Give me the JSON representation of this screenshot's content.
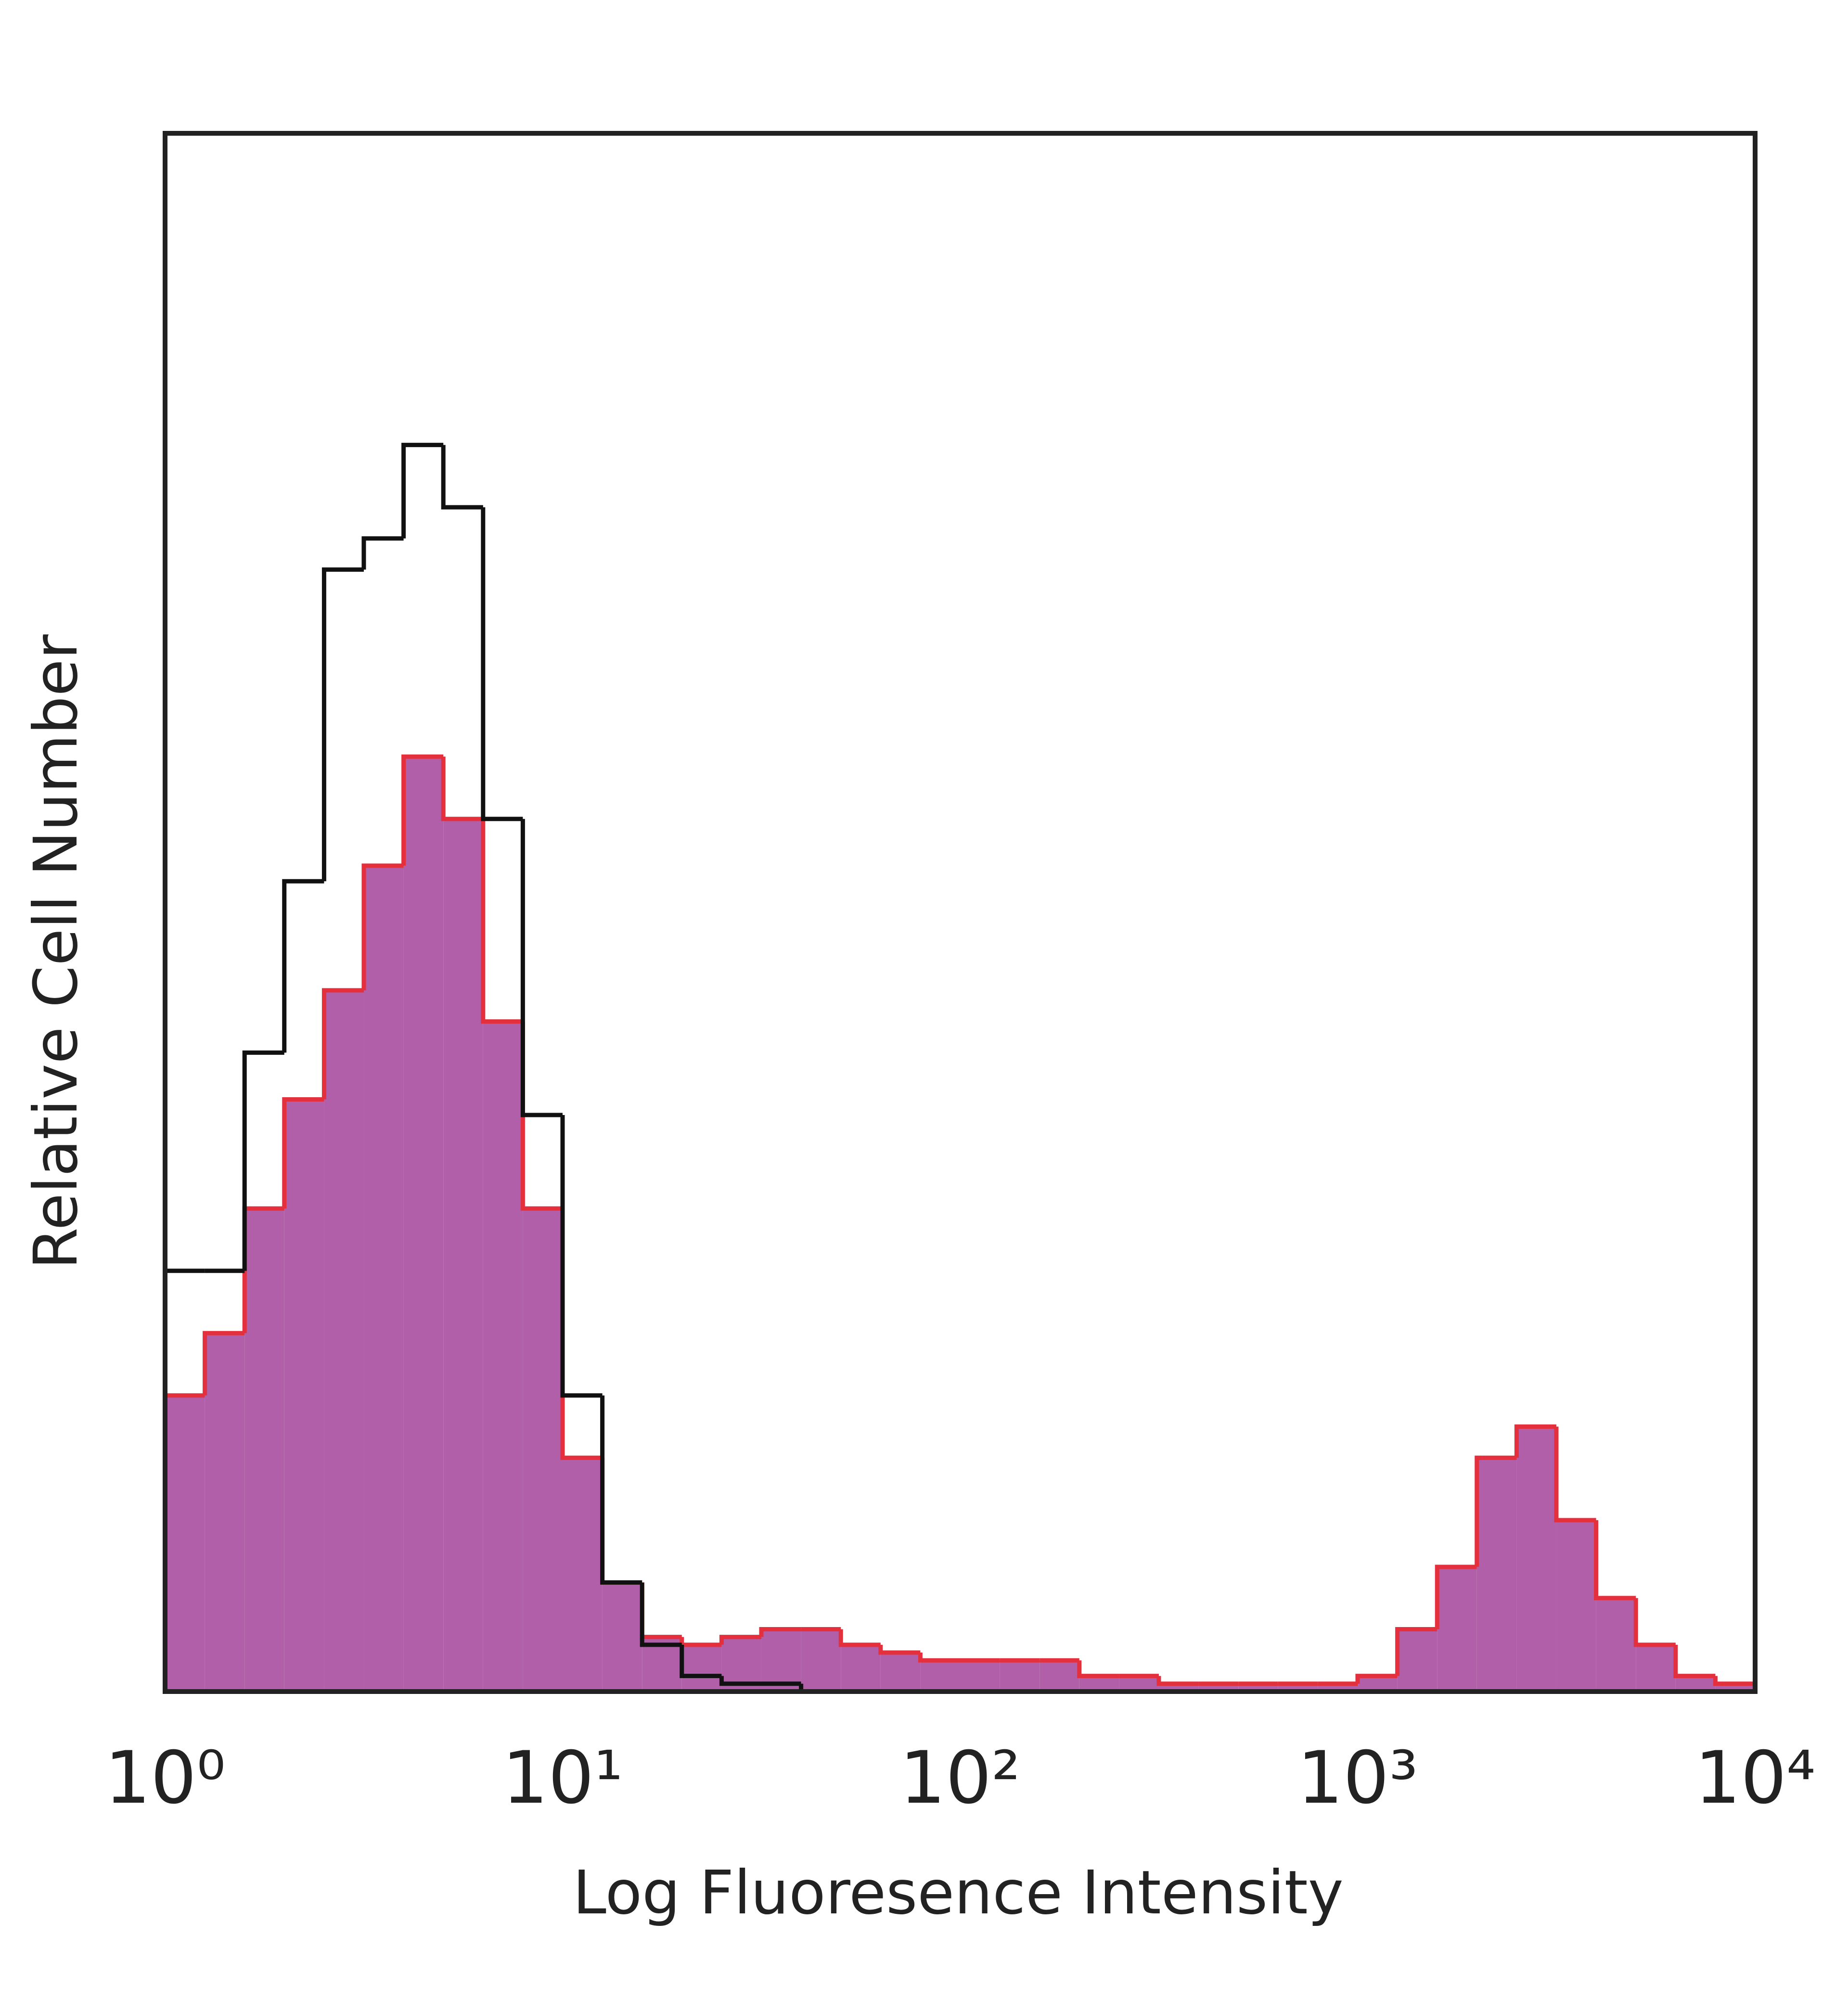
{
  "chart_data": {
    "type": "histogram",
    "xlabel": "Log Fluoresence Intensity",
    "ylabel": "Relative Cell Number",
    "xscale": "log",
    "xlim": [
      1,
      10000
    ],
    "ylim": [
      0,
      100
    ],
    "xticks": [
      {
        "value": 1,
        "label": "10⁰"
      },
      {
        "value": 10,
        "label": "10¹"
      },
      {
        "value": 100,
        "label": "10²"
      },
      {
        "value": 1000,
        "label": "10³"
      },
      {
        "value": 10000,
        "label": "10⁴"
      }
    ],
    "bins": [
      1,
      1.259,
      1.585,
      1.995,
      2.512,
      3.162,
      3.981,
      5.012,
      6.31,
      7.943,
      10,
      12.59,
      15.85,
      19.95,
      25.12,
      31.62,
      39.81,
      50.12,
      63.1,
      79.43,
      100,
      125.9,
      158.5,
      199.5,
      251.2,
      316.2,
      398.1,
      501.2,
      631,
      794.3,
      1000,
      1259,
      1585,
      1995,
      2512,
      3162,
      3981,
      5012,
      6310,
      7943,
      10000
    ],
    "series": [
      {
        "color": "#b05fa8",
        "edge_color": "#e3303c",
        "filled": true,
        "values": [
          19,
          23,
          31,
          38,
          45,
          53,
          60,
          56,
          43,
          31,
          15,
          7,
          3.5,
          3,
          3.5,
          4,
          4,
          3,
          2.5,
          2,
          2,
          2,
          2,
          1,
          1,
          0.5,
          0.5,
          0.5,
          0.5,
          0.5,
          1,
          4,
          8,
          15,
          17,
          11,
          6,
          3,
          1,
          0.5
        ]
      },
      {
        "color": "#111111",
        "filled": false,
        "values": [
          27,
          27,
          41,
          52,
          72,
          74,
          80,
          76,
          56,
          37,
          19,
          7,
          3,
          1,
          0.5,
          0.5,
          0,
          0,
          0,
          0,
          0,
          0,
          0,
          0,
          0,
          0,
          0,
          0,
          0,
          0,
          0,
          0,
          0,
          0,
          0,
          0,
          0,
          0,
          0,
          0
        ]
      }
    ]
  }
}
